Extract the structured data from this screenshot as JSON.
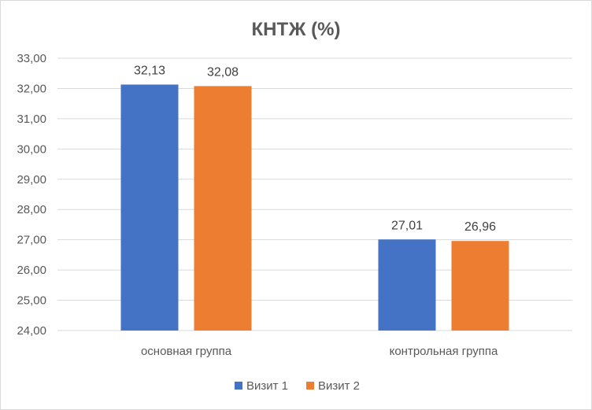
{
  "chart_data": {
    "type": "bar",
    "title": "КНТЖ (%)",
    "xlabel": "",
    "ylabel": "",
    "categories": [
      "основная группа",
      "контрольная группа"
    ],
    "series": [
      {
        "name": "Визит 1",
        "values": [
          32.13,
          27.01
        ],
        "labels": [
          "32,13",
          "27,01"
        ],
        "color": "#4472c4"
      },
      {
        "name": "Визит 2",
        "values": [
          32.08,
          26.96
        ],
        "labels": [
          "32,08",
          "26,96"
        ],
        "color": "#ed7d31"
      }
    ],
    "ylim": [
      24,
      33
    ],
    "yticks": [
      "24,00",
      "25,00",
      "26,00",
      "27,00",
      "28,00",
      "29,00",
      "30,00",
      "31,00",
      "32,00",
      "33,00"
    ],
    "grid": true,
    "legend": "bottom"
  }
}
